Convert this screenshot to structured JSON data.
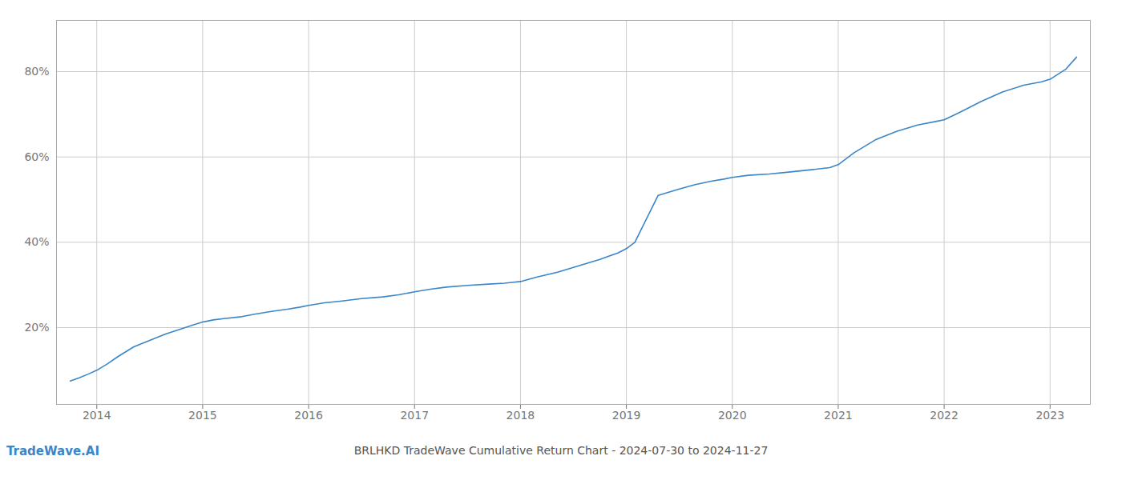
{
  "chart_data": {
    "type": "line",
    "title": "BRLHKD TradeWave Cumulative Return Chart - 2024-07-30 to 2024-11-27",
    "annotations": [
      "TradeWave.AI"
    ],
    "x": [
      2013.75,
      2013.83,
      2013.92,
      2014.0,
      2014.1,
      2014.2,
      2014.35,
      2014.5,
      2014.65,
      2014.8,
      2014.92,
      2015.0,
      2015.1,
      2015.2,
      2015.35,
      2015.5,
      2015.65,
      2015.8,
      2015.92,
      2016.0,
      2016.15,
      2016.3,
      2016.5,
      2016.7,
      2016.85,
      2016.92,
      2017.0,
      2017.15,
      2017.3,
      2017.5,
      2017.7,
      2017.85,
      2017.92,
      2018.0,
      2018.15,
      2018.35,
      2018.55,
      2018.75,
      2018.92,
      2019.0,
      2019.08,
      2019.15,
      2019.3,
      2019.5,
      2019.65,
      2019.8,
      2019.92,
      2020.0,
      2020.15,
      2020.35,
      2020.55,
      2020.75,
      2020.92,
      2021.0,
      2021.15,
      2021.35,
      2021.55,
      2021.75,
      2021.92,
      2022.0,
      2022.15,
      2022.35,
      2022.55,
      2022.75,
      2022.92,
      2023.0,
      2023.15,
      2023.25
    ],
    "values": [
      0.075,
      0.082,
      0.091,
      0.1,
      0.115,
      0.132,
      0.155,
      0.17,
      0.185,
      0.197,
      0.207,
      0.213,
      0.218,
      0.221,
      0.225,
      0.232,
      0.238,
      0.243,
      0.248,
      0.252,
      0.258,
      0.262,
      0.268,
      0.272,
      0.277,
      0.28,
      0.284,
      0.29,
      0.295,
      0.299,
      0.302,
      0.304,
      0.306,
      0.308,
      0.318,
      0.33,
      0.345,
      0.36,
      0.375,
      0.385,
      0.4,
      0.435,
      0.51,
      0.525,
      0.535,
      0.543,
      0.548,
      0.552,
      0.557,
      0.56,
      0.565,
      0.57,
      0.575,
      0.582,
      0.61,
      0.64,
      0.66,
      0.675,
      0.683,
      0.687,
      0.705,
      0.73,
      0.752,
      0.768,
      0.776,
      0.782,
      0.806,
      0.834
    ],
    "color": "#3a86c8",
    "xlim": [
      2013.62,
      2023.38
    ],
    "xticks": [
      2014,
      2015,
      2016,
      2017,
      2018,
      2019,
      2020,
      2021,
      2022,
      2023
    ],
    "ylim": [
      0.02,
      0.92
    ],
    "yticks": [
      {
        "value": 0.2,
        "label": "20%"
      },
      {
        "value": 0.4,
        "label": "40%"
      },
      {
        "value": 0.6,
        "label": "60%"
      },
      {
        "value": 0.8,
        "label": "80%"
      }
    ],
    "grid": true
  }
}
